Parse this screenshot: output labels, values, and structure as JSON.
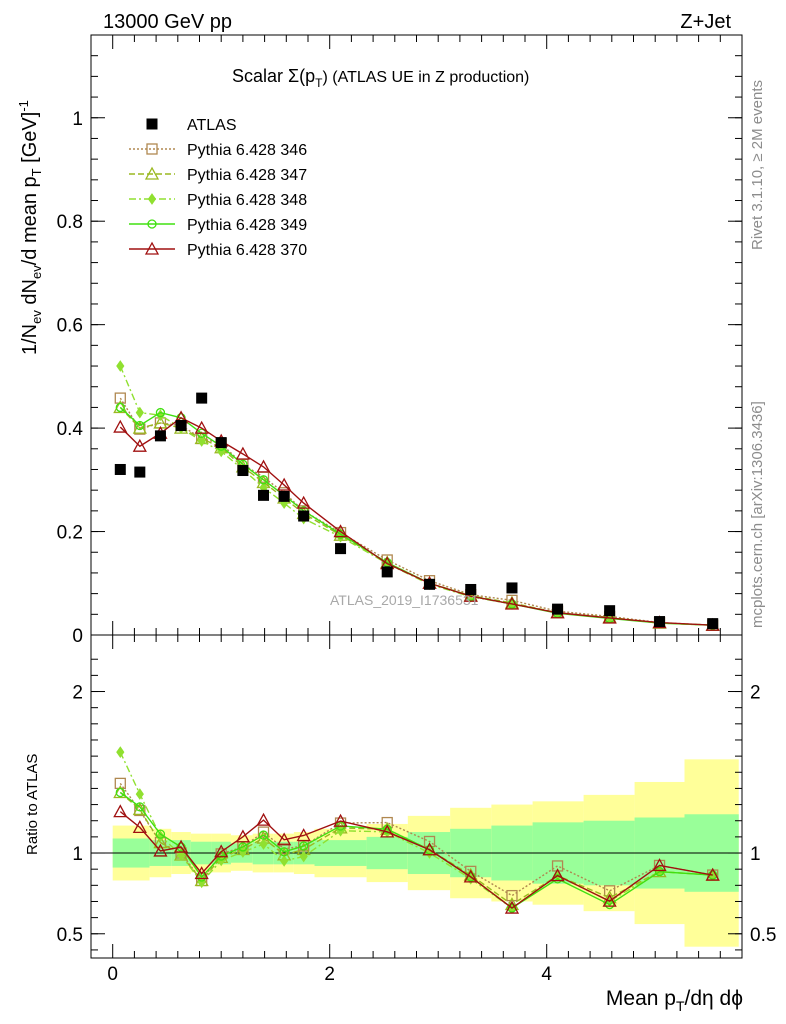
{
  "header": {
    "left": "13000 GeV pp",
    "right": "Z+Jet"
  },
  "plot_title": {
    "prefix": "Scalar Σ(p",
    "sub": "T",
    "suffix": ")  (ATLAS UE in Z production)"
  },
  "side_texts": {
    "rivet": "Rivet 3.1.10, ≥ 2M events",
    "mcplots": "mcplots.cern.ch [arXiv:1306.3436]"
  },
  "watermark": "ATLAS_2019_I1736531",
  "axes": {
    "main_ylabel": {
      "p1": "1/N",
      "s1": "ev",
      "p2": " dN",
      "s2": "ev",
      "p3": "/d mean p",
      "s3": "T",
      "p4": " [GeV]",
      "sup": "-1"
    },
    "ratio_ylabel": "Ratio to ATLAS",
    "xlabel": {
      "p1": "Mean p",
      "s1": "T",
      "p2": "/dη dϕ"
    }
  },
  "legend": [
    {
      "name": "ATLAS"
    },
    {
      "name": "Pythia 6.428 346"
    },
    {
      "name": "Pythia 6.428 347"
    },
    {
      "name": "Pythia 6.428 348"
    },
    {
      "name": "Pythia 6.428 349"
    },
    {
      "name": "Pythia 6.428 370"
    }
  ],
  "chart_data": {
    "type": "line",
    "x": [
      0.07,
      0.25,
      0.44,
      0.63,
      0.82,
      1.0,
      1.2,
      1.39,
      1.58,
      1.76,
      2.1,
      2.53,
      2.92,
      3.3,
      3.68,
      4.1,
      4.58,
      5.04,
      5.53
    ],
    "x_axis": {
      "range": [
        -0.2,
        5.8
      ],
      "ticks": [
        0,
        2,
        4
      ],
      "tick_labels": [
        "0",
        "2",
        "4"
      ]
    },
    "main_y_axis": {
      "range": [
        0,
        1.16
      ],
      "ticks": [
        0,
        0.2,
        0.4,
        0.6,
        0.8,
        1
      ],
      "tick_labels": [
        "0",
        "0.2",
        "0.4",
        "0.6",
        "0.8",
        "1"
      ]
    },
    "ratio_y_axis": {
      "range": [
        0.35,
        2.35
      ],
      "ticks": [
        0.5,
        1,
        2
      ],
      "tick_labels": [
        "0.5",
        "1",
        "2"
      ]
    },
    "data": {
      "name": "ATLAS",
      "values": [
        0.32,
        0.315,
        0.385,
        0.405,
        0.458,
        0.372,
        0.318,
        0.27,
        0.268,
        0.23,
        0.167,
        0.122,
        0.098,
        0.088,
        0.091,
        0.05,
        0.047,
        0.026,
        0.022
      ]
    },
    "series": [
      {
        "name": "Pythia 6.428 346",
        "color": "#b08850",
        "marker": "square",
        "dash": "2,2",
        "values": [
          0.458,
          0.398,
          0.41,
          0.405,
          0.38,
          0.37,
          0.33,
          0.305,
          0.275,
          0.24,
          0.198,
          0.145,
          0.105,
          0.078,
          0.067,
          0.046,
          0.036,
          0.024,
          0.019
        ]
      },
      {
        "name": "Pythia 6.428 347",
        "color": "#9ab820",
        "marker": "triangle",
        "dash": "6,3",
        "values": [
          0.44,
          0.4,
          0.41,
          0.4,
          0.38,
          0.362,
          0.325,
          0.295,
          0.265,
          0.235,
          0.193,
          0.14,
          0.1,
          0.076,
          0.062,
          0.043,
          0.034,
          0.023,
          0.019
        ]
      },
      {
        "name": "Pythia 6.428 348",
        "color": "#90e030",
        "marker": "diamond",
        "dash": "7,3,2,3",
        "values": [
          0.52,
          0.43,
          0.425,
          0.4,
          0.375,
          0.355,
          0.32,
          0.285,
          0.255,
          0.225,
          0.19,
          0.138,
          0.098,
          0.074,
          0.06,
          0.043,
          0.033,
          0.023,
          0.019
        ]
      },
      {
        "name": "Pythia 6.428 349",
        "color": "#40e010",
        "marker": "circle",
        "dash": "",
        "values": [
          0.44,
          0.405,
          0.43,
          0.42,
          0.39,
          0.365,
          0.33,
          0.3,
          0.27,
          0.24,
          0.195,
          0.14,
          0.1,
          0.075,
          0.06,
          0.042,
          0.032,
          0.023,
          0.019
        ]
      },
      {
        "name": "Pythia 6.428 370",
        "color": "#a01010",
        "marker": "triangle",
        "dash": "",
        "values": [
          0.402,
          0.365,
          0.39,
          0.42,
          0.4,
          0.375,
          0.35,
          0.325,
          0.29,
          0.255,
          0.2,
          0.138,
          0.1,
          0.075,
          0.06,
          0.043,
          0.033,
          0.024,
          0.019
        ]
      }
    ],
    "ratio_bands": {
      "edges": [
        0,
        0.34,
        0.54,
        0.72,
        0.91,
        1.09,
        1.29,
        1.48,
        1.67,
        1.86,
        2.34,
        2.72,
        3.11,
        3.49,
        3.87,
        4.34,
        4.81,
        5.27,
        5.77
      ],
      "green_half": [
        0.09,
        0.08,
        0.08,
        0.07,
        0.07,
        0.06,
        0.07,
        0.07,
        0.07,
        0.08,
        0.1,
        0.13,
        0.15,
        0.17,
        0.19,
        0.2,
        0.22,
        0.24
      ],
      "yellow_half": [
        0.17,
        0.15,
        0.13,
        0.12,
        0.12,
        0.11,
        0.12,
        0.12,
        0.13,
        0.15,
        0.18,
        0.23,
        0.28,
        0.3,
        0.32,
        0.36,
        0.44,
        0.58
      ]
    }
  }
}
